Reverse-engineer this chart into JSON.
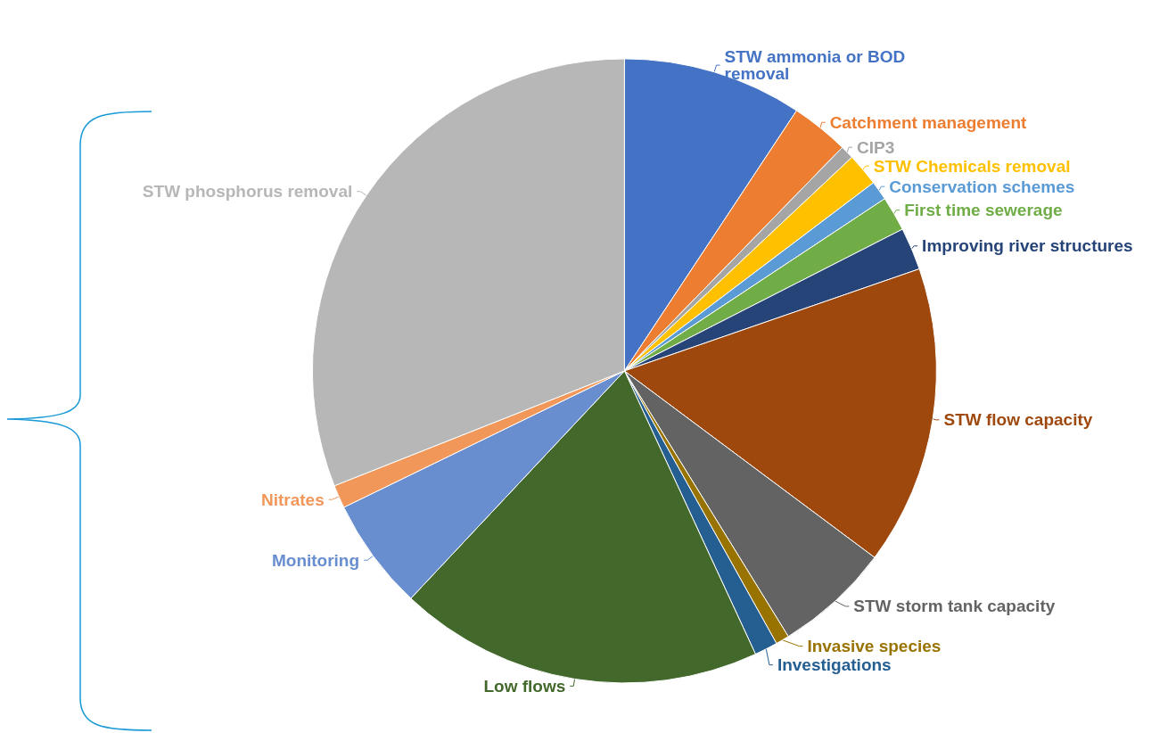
{
  "chart_data": {
    "type": "pie",
    "categories": [
      "STW ammonia or BOD removal",
      "Catchment management",
      "CIP3",
      "STW Chemicals removal",
      "Conservation schemes",
      "First time sewerage",
      "Improving river structures",
      "STW flow capacity",
      "STW storm tank capacity",
      "Invasive species",
      "Investigations",
      "Low flows",
      "Monitoring",
      "Nitrates",
      "STW phosphorus removal"
    ],
    "values": [
      9.3,
      3.0,
      0.7,
      1.7,
      1.0,
      1.8,
      2.2,
      15.5,
      6.0,
      0.7,
      1.2,
      18.9,
      5.8,
      1.2,
      31.0
    ],
    "colors": [
      "#4472c4",
      "#ed7d31",
      "#a5a5a5",
      "#ffc000",
      "#5b9bd5",
      "#70ad47",
      "#264478",
      "#9e480e",
      "#636363",
      "#997300",
      "#255e91",
      "#43682b",
      "#698ed0",
      "#f1975a",
      "#b7b7b7"
    ],
    "legend": false
  }
}
